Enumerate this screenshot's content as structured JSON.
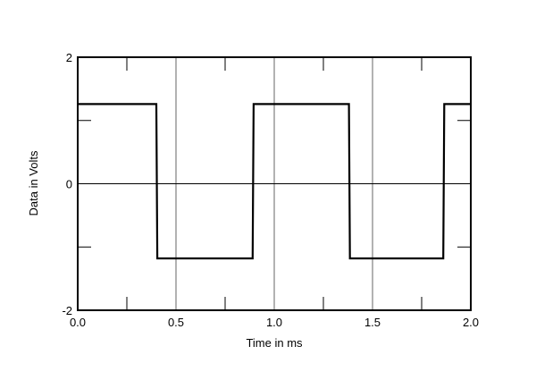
{
  "chart_data": {
    "type": "line",
    "title": "",
    "xlabel": "Time in ms",
    "ylabel": "Data in Volts",
    "xlim": [
      0,
      2.0
    ],
    "ylim": [
      -2,
      2
    ],
    "xticks": [
      "0.0",
      "0.5",
      "1.0",
      "1.5",
      "2.0"
    ],
    "xtick_values": [
      0,
      0.5,
      1.0,
      1.5,
      2.0
    ],
    "yticks": [
      "-2",
      "0",
      "2"
    ],
    "ytick_values": [
      -2,
      0,
      2
    ],
    "grid": true,
    "series": [
      {
        "color": "#000000",
        "x": [
          0.0,
          0.4,
          0.405,
          0.89,
          0.895,
          1.38,
          1.385,
          1.86,
          1.865,
          2.0
        ],
        "y": [
          1.26,
          1.26,
          -1.18,
          -1.18,
          1.26,
          1.26,
          -1.18,
          -1.18,
          1.26,
          1.26
        ]
      }
    ]
  }
}
